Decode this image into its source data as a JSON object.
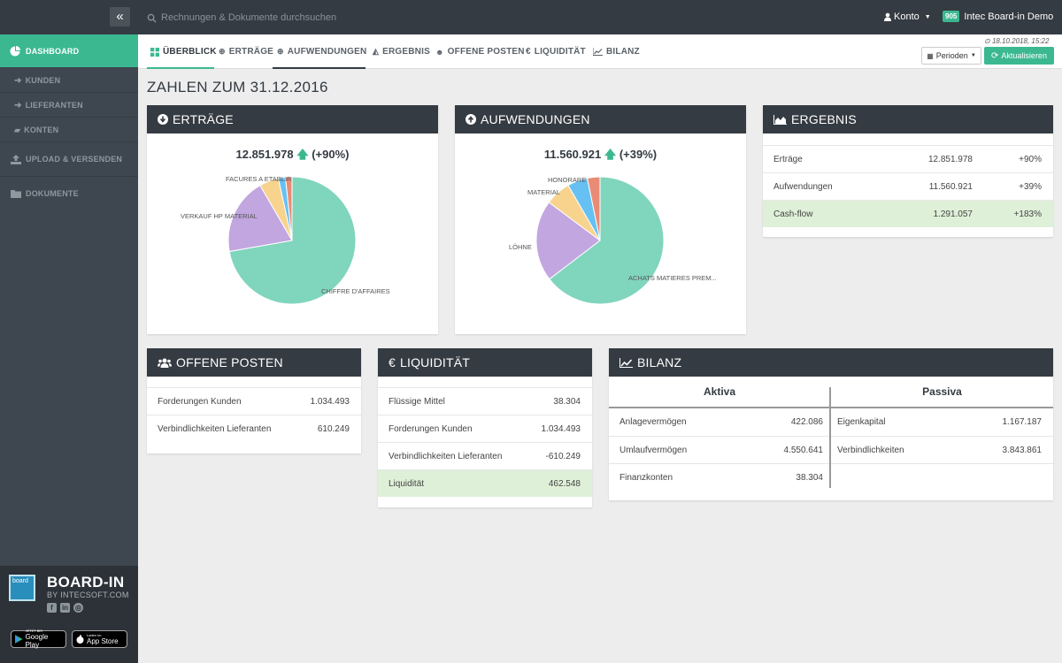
{
  "topbar": {
    "search_placeholder": "Rechnungen & Dokumente durchsuchen",
    "account_label": "Konto",
    "company_badge": "905",
    "company_name": "Intec Board-in Demo"
  },
  "sidebar": {
    "dashboard": "DASHBOARD",
    "kunden": "KUNDEN",
    "lieferanten": "LIEFERANTEN",
    "konten": "KONTEN",
    "upload": "UPLOAD & VERSENDEN",
    "dokumente": "DOKUMENTE",
    "brand_name": "BOARD-IN",
    "brand_sub": "BY INTECSOFT.COM",
    "google_small": "JETZT BEI",
    "google_big": "Google Play",
    "apple_small": "Laden im",
    "apple_big": "App Store",
    "logo_text": "board"
  },
  "tabs": [
    "ÜBERBLICK",
    "ERTRÄGE",
    "AUFWENDUNGEN",
    "ERGEBNIS",
    "OFFENE POSTEN",
    "LIQUIDITÄT",
    "BILANZ"
  ],
  "toolbar": {
    "timestamp": "18.10.2018, 15:22",
    "perioden": "Perioden",
    "aktualisieren": "Aktualisieren"
  },
  "page_title": "ZAHLEN ZUM 31.12.2016",
  "ertraege": {
    "title": "ERTRÄGE",
    "total": "12.851.978",
    "change": "(+90%)",
    "labels": [
      "CHIFFRE D'AFFAIRES",
      "VERKAUF HP MATERIAL",
      "FACURES A ETABLIR"
    ]
  },
  "aufwendungen": {
    "title": "AUFWENDUNGEN",
    "total": "11.560.921",
    "change": "(+39%)",
    "labels": [
      "ACHATS MATIERES PREM...",
      "LÖHNE",
      "MATERIAL",
      "HONORARE"
    ]
  },
  "ergebnis": {
    "title": "ERGEBNIS",
    "rows": [
      {
        "label": "Erträge",
        "value": "12.851.978",
        "change": "+90%"
      },
      {
        "label": "Aufwendungen",
        "value": "11.560.921",
        "change": "+39%"
      },
      {
        "label": "Cash-flow",
        "value": "1.291.057",
        "change": "+183%"
      }
    ]
  },
  "offene_posten": {
    "title": "OFFENE POSTEN",
    "rows": [
      {
        "label": "Forderungen Kunden",
        "value": "1.034.493"
      },
      {
        "label": "Verbindlichkeiten Lieferanten",
        "value": "610.249"
      }
    ]
  },
  "liquiditaet": {
    "title": "LIQUIDITÄT",
    "rows": [
      {
        "label": "Flüssige Mittel",
        "value": "38.304"
      },
      {
        "label": "Forderungen Kunden",
        "value": "1.034.493"
      },
      {
        "label": "Verbindlichkeiten Lieferanten",
        "value": "-610.249"
      },
      {
        "label": "Liquidität",
        "value": "462.548"
      }
    ]
  },
  "bilanz": {
    "title": "BILANZ",
    "aktiva_header": "Aktiva",
    "passiva_header": "Passiva",
    "aktiva": [
      {
        "label": "Anlagevermögen",
        "value": "422.086"
      },
      {
        "label": "Umlaufvermögen",
        "value": "4.550.641"
      },
      {
        "label": "Finanzkonten",
        "value": "38.304"
      }
    ],
    "passiva": [
      {
        "label": "Eigenkapital",
        "value": "1.167.187"
      },
      {
        "label": "Verbindlichkeiten",
        "value": "3.843.861"
      }
    ]
  },
  "colors": {
    "accent": "#3cb891",
    "dark": "#353b42",
    "pie_teal": "#80d5bd",
    "pie_purple": "#c2a6e0",
    "pie_yellow": "#f7d38e",
    "pie_blue": "#66c1f2",
    "pie_orange": "#e98c76"
  }
}
